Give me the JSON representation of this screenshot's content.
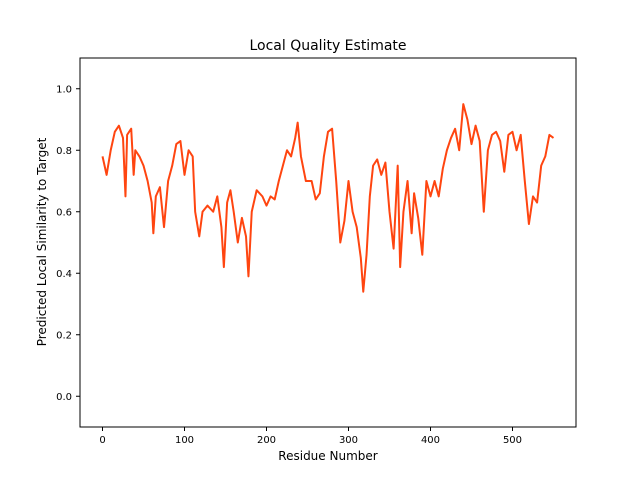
{
  "chart_data": {
    "type": "line",
    "title": "Local Quality Estimate",
    "x_label": "Residue Number",
    "y_label": "Predicted Local Similarity to Target",
    "xlim": [
      -27.45,
      577.45
    ],
    "ylim": [
      -0.1,
      1.1
    ],
    "xticks": [
      0,
      100,
      200,
      300,
      400,
      500
    ],
    "yticks": [
      {
        "value": 0,
        "label": "0.0"
      },
      {
        "value": 0.2,
        "label": "0.2"
      },
      {
        "value": 0.4,
        "label": "0.4"
      },
      {
        "value": 0.6,
        "label": "0.6"
      },
      {
        "value": 0.8,
        "label": "0.8"
      },
      {
        "value": 1.0,
        "label": "1.0"
      }
    ],
    "series": [
      {
        "color": "#ff4510",
        "x": [
          0,
          5,
          10,
          15,
          20,
          25,
          28,
          30,
          35,
          38,
          40,
          45,
          50,
          55,
          60,
          62,
          65,
          70,
          75,
          80,
          85,
          90,
          95,
          100,
          105,
          110,
          113,
          118,
          122,
          128,
          135,
          140,
          145,
          148,
          152,
          156,
          160,
          165,
          170,
          175,
          178,
          182,
          188,
          195,
          200,
          205,
          210,
          215,
          220,
          225,
          230,
          235,
          238,
          242,
          248,
          255,
          260,
          265,
          270,
          275,
          280,
          285,
          290,
          295,
          300,
          305,
          310,
          315,
          318,
          322,
          326,
          330,
          335,
          340,
          345,
          350,
          355,
          360,
          363,
          367,
          372,
          377,
          380,
          385,
          390,
          395,
          400,
          405,
          410,
          415,
          420,
          425,
          430,
          435,
          440,
          445,
          450,
          455,
          460,
          465,
          470,
          475,
          480,
          485,
          490,
          495,
          500,
          505,
          510,
          515,
          520,
          525,
          530,
          535,
          540,
          545,
          550
        ],
        "values": [
          0.78,
          0.72,
          0.8,
          0.86,
          0.88,
          0.84,
          0.65,
          0.85,
          0.87,
          0.72,
          0.8,
          0.78,
          0.75,
          0.7,
          0.63,
          0.53,
          0.65,
          0.68,
          0.55,
          0.7,
          0.75,
          0.82,
          0.83,
          0.72,
          0.8,
          0.78,
          0.6,
          0.52,
          0.6,
          0.62,
          0.6,
          0.65,
          0.55,
          0.42,
          0.63,
          0.67,
          0.6,
          0.5,
          0.58,
          0.52,
          0.39,
          0.6,
          0.67,
          0.65,
          0.62,
          0.65,
          0.64,
          0.7,
          0.75,
          0.8,
          0.78,
          0.84,
          0.89,
          0.78,
          0.7,
          0.7,
          0.64,
          0.66,
          0.78,
          0.86,
          0.87,
          0.7,
          0.5,
          0.57,
          0.7,
          0.6,
          0.55,
          0.45,
          0.34,
          0.46,
          0.65,
          0.75,
          0.77,
          0.72,
          0.76,
          0.6,
          0.48,
          0.75,
          0.42,
          0.6,
          0.7,
          0.53,
          0.66,
          0.58,
          0.46,
          0.7,
          0.65,
          0.7,
          0.65,
          0.74,
          0.8,
          0.84,
          0.87,
          0.8,
          0.95,
          0.9,
          0.82,
          0.88,
          0.83,
          0.6,
          0.8,
          0.85,
          0.86,
          0.83,
          0.73,
          0.85,
          0.86,
          0.8,
          0.85,
          0.7,
          0.56,
          0.65,
          0.63,
          0.75,
          0.78,
          0.85,
          0.84
        ]
      }
    ]
  }
}
